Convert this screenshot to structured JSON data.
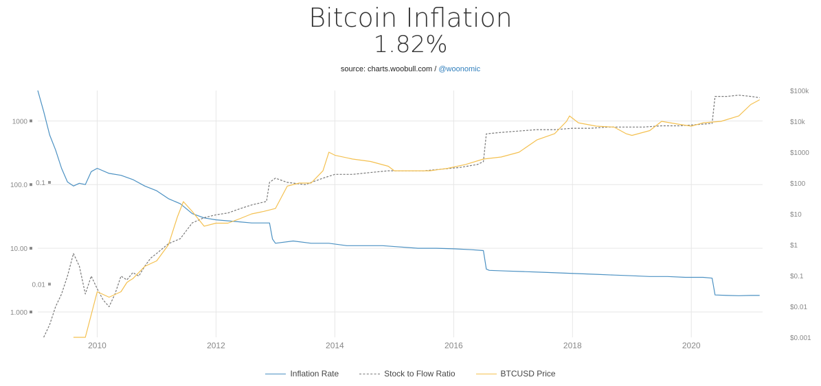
{
  "header": {
    "title": "Bitcoin Inflation",
    "value": "1.82%",
    "source_prefix": "source: charts.woobull.com / ",
    "source_link": "@woonomic"
  },
  "colors": {
    "inflation": "#4a90c2",
    "s2f": "#777777",
    "price": "#f4c04f",
    "grid": "#e6e6e6",
    "axis_text": "#888888"
  },
  "chart_data": {
    "type": "line",
    "title": "Bitcoin Inflation",
    "subtitle": "1.82%",
    "x_ticks": [
      "2010",
      "2012",
      "2014",
      "2016",
      "2018",
      "2020"
    ],
    "xlim": [
      2009.0,
      2021.2
    ],
    "y_left_ticks": [
      "1000",
      "100.0",
      "10.00",
      "1.000"
    ],
    "y_left_range": [
      0.4,
      3000
    ],
    "y_left_scale": "log",
    "y_s2f_ticks": [
      "0.1",
      "0.01"
    ],
    "y_s2f_range": [
      0.003,
      0.8
    ],
    "y_s2f_scale": "log",
    "y_right_ticks": [
      "$100k",
      "$10k",
      "$1000",
      "$100",
      "$10",
      "$1",
      "$0.1",
      "$0.01",
      "$0.001"
    ],
    "y_right_range": [
      0.001,
      100000
    ],
    "y_right_scale": "log",
    "legend_position": "bottom",
    "series": [
      {
        "name": "Inflation Rate",
        "axis": "left",
        "x": [
          2009.0,
          2009.1,
          2009.2,
          2009.3,
          2009.4,
          2009.5,
          2009.6,
          2009.7,
          2009.8,
          2009.9,
          2010.0,
          2010.2,
          2010.4,
          2010.6,
          2010.8,
          2011.0,
          2011.2,
          2011.4,
          2011.6,
          2011.8,
          2012.0,
          2012.2,
          2012.4,
          2012.6,
          2012.9,
          2012.95,
          2013.0,
          2013.3,
          2013.6,
          2013.9,
          2014.2,
          2014.5,
          2014.8,
          2015.1,
          2015.4,
          2015.7,
          2016.0,
          2016.3,
          2016.5,
          2016.55,
          2016.6,
          2016.9,
          2017.2,
          2017.5,
          2017.8,
          2018.1,
          2018.4,
          2018.7,
          2019.0,
          2019.3,
          2019.6,
          2019.9,
          2020.2,
          2020.35,
          2020.4,
          2020.6,
          2020.8,
          2021.0,
          2021.15
        ],
        "y": [
          3000,
          1400,
          600,
          350,
          180,
          110,
          95,
          105,
          100,
          160,
          180,
          150,
          140,
          120,
          95,
          80,
          60,
          50,
          35,
          30,
          28,
          27,
          26,
          25,
          25,
          14,
          12,
          13,
          12,
          12,
          11,
          11,
          11,
          10.5,
          10,
          10,
          9.8,
          9.5,
          9.2,
          4.7,
          4.5,
          4.4,
          4.3,
          4.2,
          4.1,
          4.0,
          3.9,
          3.8,
          3.7,
          3.6,
          3.6,
          3.5,
          3.5,
          3.4,
          1.85,
          1.82,
          1.8,
          1.82,
          1.82
        ]
      },
      {
        "name": "Stock to Flow Ratio",
        "axis": "s2f",
        "x": [
          2009.1,
          2009.2,
          2009.3,
          2009.4,
          2009.5,
          2009.6,
          2009.7,
          2009.8,
          2009.9,
          2010.0,
          2010.1,
          2010.2,
          2010.3,
          2010.4,
          2010.5,
          2010.6,
          2010.7,
          2010.8,
          2010.9,
          2011.0,
          2011.2,
          2011.4,
          2011.6,
          2011.8,
          2012.0,
          2012.2,
          2012.4,
          2012.6,
          2012.85,
          2012.9,
          2013.0,
          2013.2,
          2013.5,
          2013.8,
          2014.0,
          2014.3,
          2014.6,
          2014.9,
          2015.2,
          2015.5,
          2015.8,
          2016.1,
          2016.4,
          2016.5,
          2016.55,
          2016.8,
          2017.1,
          2017.4,
          2017.7,
          2018.0,
          2018.3,
          2018.6,
          2018.9,
          2019.2,
          2019.5,
          2019.8,
          2020.1,
          2020.35,
          2020.4,
          2020.6,
          2020.8,
          2021.0,
          2021.15
        ],
        "y": [
          0.003,
          0.004,
          0.006,
          0.008,
          0.012,
          0.02,
          0.015,
          0.008,
          0.012,
          0.009,
          0.007,
          0.006,
          0.008,
          0.012,
          0.011,
          0.013,
          0.012,
          0.015,
          0.018,
          0.02,
          0.025,
          0.028,
          0.04,
          0.045,
          0.048,
          0.05,
          0.055,
          0.06,
          0.065,
          0.1,
          0.11,
          0.1,
          0.095,
          0.11,
          0.12,
          0.12,
          0.125,
          0.13,
          0.13,
          0.13,
          0.135,
          0.14,
          0.15,
          0.16,
          0.3,
          0.31,
          0.32,
          0.33,
          0.33,
          0.34,
          0.34,
          0.35,
          0.35,
          0.35,
          0.36,
          0.36,
          0.37,
          0.38,
          0.7,
          0.7,
          0.72,
          0.7,
          0.68
        ]
      },
      {
        "name": "BTCUSD Price",
        "axis": "right",
        "x": [
          2009.6,
          2009.7,
          2009.8,
          2010.0,
          2010.2,
          2010.4,
          2010.5,
          2010.55,
          2010.6,
          2010.8,
          2011.0,
          2011.2,
          2011.35,
          2011.45,
          2011.6,
          2011.8,
          2012.0,
          2012.2,
          2012.4,
          2012.6,
          2012.8,
          2013.0,
          2013.2,
          2013.4,
          2013.6,
          2013.8,
          2013.9,
          2014.0,
          2014.3,
          2014.6,
          2014.9,
          2015.0,
          2015.3,
          2015.6,
          2015.9,
          2016.2,
          2016.5,
          2016.8,
          2017.1,
          2017.4,
          2017.7,
          2017.9,
          2017.95,
          2018.1,
          2018.4,
          2018.7,
          2018.9,
          2019.0,
          2019.3,
          2019.5,
          2019.8,
          2020.0,
          2020.2,
          2020.5,
          2020.8,
          2021.0,
          2021.15
        ],
        "y": [
          0.001,
          0.001,
          0.001,
          0.03,
          0.02,
          0.03,
          0.06,
          0.07,
          0.08,
          0.2,
          0.3,
          1,
          8,
          25,
          12,
          4,
          5,
          5,
          7,
          10,
          12,
          15,
          80,
          100,
          100,
          250,
          1000,
          800,
          600,
          500,
          350,
          250,
          250,
          250,
          300,
          400,
          600,
          700,
          1000,
          2500,
          4000,
          10000,
          15000,
          9000,
          7000,
          6500,
          4000,
          3500,
          5000,
          10000,
          8000,
          7000,
          9000,
          10000,
          15000,
          35000,
          50000
        ]
      }
    ]
  }
}
